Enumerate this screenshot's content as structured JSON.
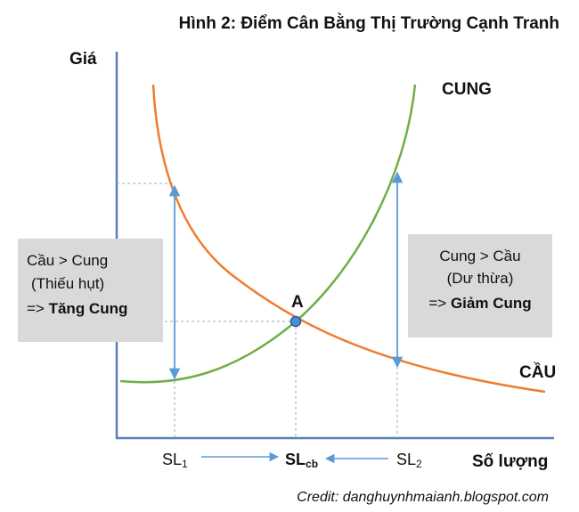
{
  "title": "Hình 2: Điểm Cân Bằng Thị Trường Cạnh Tranh",
  "y_axis_label": "Giá",
  "x_axis_label": "Số lượng",
  "supply_label": "CUNG",
  "demand_label": "CẦU",
  "equilibrium_label": "A",
  "ticks": {
    "sl1_base": "SL",
    "sl1_sub": "1",
    "slcb_base": "SL",
    "slcb_sub": "cb",
    "sl2_base": "SL",
    "sl2_sub": "2"
  },
  "left_box": {
    "line1": "Cầu > Cung",
    "line2": "(Thiếu hụt)",
    "line3_prefix": "=> ",
    "line3_bold": "Tăng Cung"
  },
  "right_box": {
    "line1": "Cung > Cầu",
    "line2": "(Dư thừa)",
    "line3_prefix": "=> ",
    "line3_bold": "Giảm Cung"
  },
  "credit": "Credit: danghuynhmaianh.blogspot.com",
  "colors": {
    "supply": "#70ad47",
    "demand": "#ed7d31",
    "arrow": "#5b9bd5",
    "axis": "#5b7fb5",
    "box": "#d9d9d9",
    "point_fill": "#4a90d9",
    "point_stroke": "#2e5597"
  }
}
